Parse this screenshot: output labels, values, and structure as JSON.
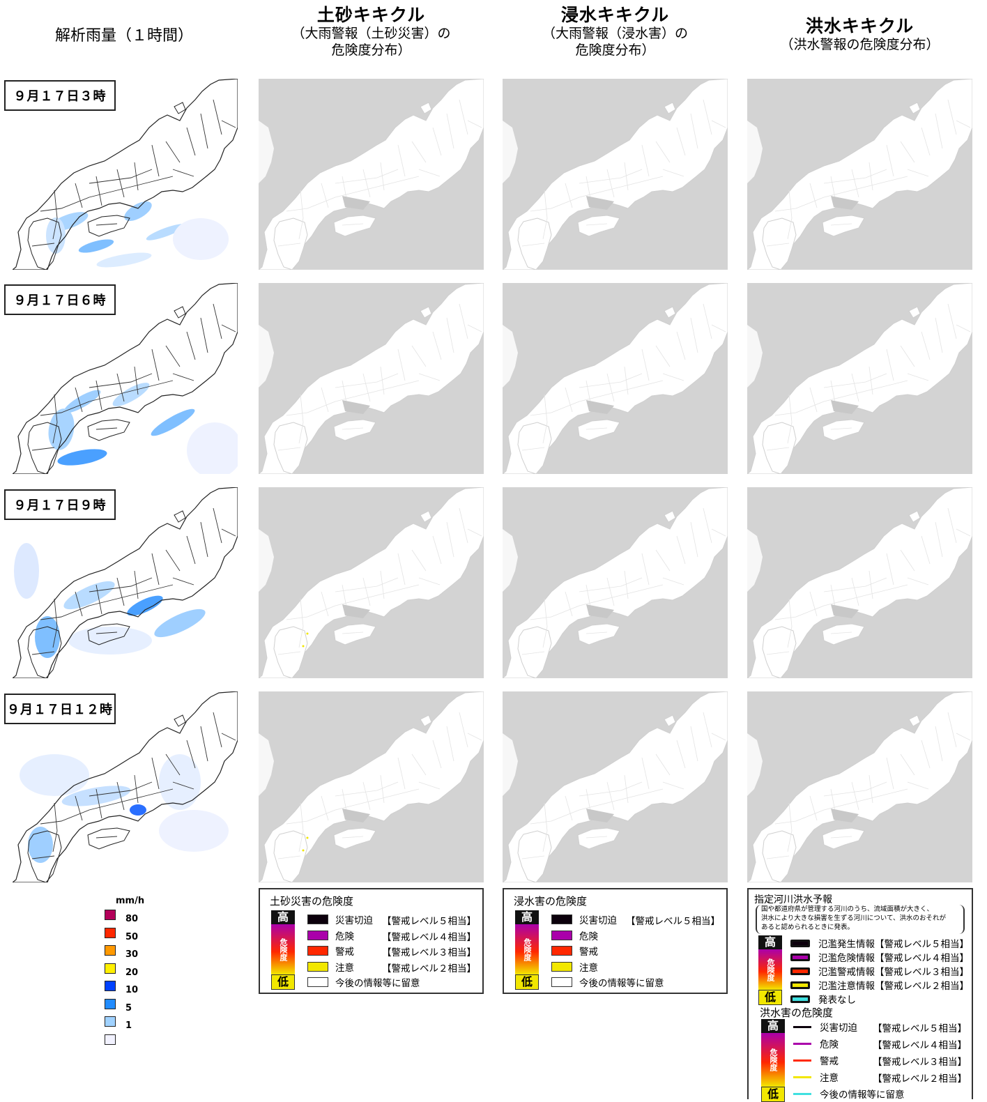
{
  "columns": [
    {
      "title": "解析雨量（１時間）",
      "subtitle": ""
    },
    {
      "title": "土砂キキクル",
      "subtitle1": "（大雨警報（土砂災害）の",
      "subtitle2": "危険度分布）"
    },
    {
      "title": "浸水キキクル",
      "subtitle1": "（大雨警報（浸水害）の",
      "subtitle2": "危険度分布）"
    },
    {
      "title": "洪水キキクル",
      "subtitle1": "（洪水警報の危険度分布）",
      "subtitle2": ""
    }
  ],
  "times": [
    "９月１７日３時",
    "９月１７日６時",
    "９月１７日９時",
    "９月１７日１２時"
  ],
  "rain_legend": {
    "unit": "mm/h",
    "levels": [
      {
        "label": "80",
        "color": "#b4005a"
      },
      {
        "label": "50",
        "color": "#ff2800"
      },
      {
        "label": "30",
        "color": "#ff9900"
      },
      {
        "label": "20",
        "color": "#fff000"
      },
      {
        "label": "10",
        "color": "#0041ff"
      },
      {
        "label": "5",
        "color": "#218cff"
      },
      {
        "label": "1",
        "color": "#a0d2ff"
      },
      {
        "label": "",
        "color": "#f2f2ff"
      }
    ]
  },
  "dosha_legend": {
    "title": "土砂災害の危険度",
    "gauge_top": "高",
    "gauge_mid": "危険度",
    "gauge_bottom": "低",
    "rows": [
      {
        "label": "災害切迫",
        "level": "【警戒レベル５相当】",
        "color": "#0c000c"
      },
      {
        "label": "危険",
        "level": "【警戒レベル４相当】",
        "color": "#aa00aa"
      },
      {
        "label": "警戒",
        "level": "【警戒レベル３相当】",
        "color": "#ff2800"
      },
      {
        "label": "注意",
        "level": "【警戒レベル２相当】",
        "color": "#f2e700"
      },
      {
        "label": "今後の情報等に留意",
        "level": "",
        "color": "#ffffff"
      }
    ]
  },
  "shinsui_legend": {
    "title": "浸水害の危険度",
    "gauge_top": "高",
    "gauge_mid": "危険度",
    "gauge_bottom": "低",
    "rows": [
      {
        "label": "災害切迫",
        "level": "【警戒レベル５相当】",
        "color": "#0c000c"
      },
      {
        "label": "危険",
        "level": "",
        "color": "#aa00aa"
      },
      {
        "label": "警戒",
        "level": "",
        "color": "#ff2800"
      },
      {
        "label": "注意",
        "level": "",
        "color": "#f2e700"
      },
      {
        "label": "今後の情報等に留意",
        "level": "",
        "color": "#ffffff"
      }
    ]
  },
  "kozui_legend": {
    "title": "指定河川洪水予報",
    "note1": "国や都道府県が管理する河川のうち、流域面積が大きく、",
    "note2": "洪水により大きな損害を生ずる河川について、洪水のおそれが",
    "note3": "あると認められるときに発表。",
    "river_rows": [
      {
        "label": "氾濫発生情報【警戒レベル５相当】",
        "color": "#0c000c"
      },
      {
        "label": "氾濫危険情報【警戒レベル４相当】",
        "color": "#aa00aa"
      },
      {
        "label": "氾濫警戒情報【警戒レベル３相当】",
        "color": "#ff2800"
      },
      {
        "label": "氾濫注意情報【警戒レベル２相当】",
        "color": "#f2e700"
      },
      {
        "label": "発表なし",
        "color": "#40e0e0"
      }
    ],
    "title2": "洪水害の危険度",
    "risk_rows": [
      {
        "label": "災害切迫",
        "level": "【警戒レベル５相当】",
        "color": "#0c000c"
      },
      {
        "label": "危険",
        "level": "【警戒レベル４相当】",
        "color": "#aa00aa"
      },
      {
        "label": "警戒",
        "level": "【警戒レベル３相当】",
        "color": "#ff2800"
      },
      {
        "label": "注意",
        "level": "【警戒レベル２相当】",
        "color": "#f2e700"
      },
      {
        "label": "今後の情報等に留意",
        "level": "",
        "color": "#40e0e0"
      }
    ],
    "gauge_top": "高",
    "gauge_mid": "危険度",
    "gauge_bottom": "低"
  }
}
